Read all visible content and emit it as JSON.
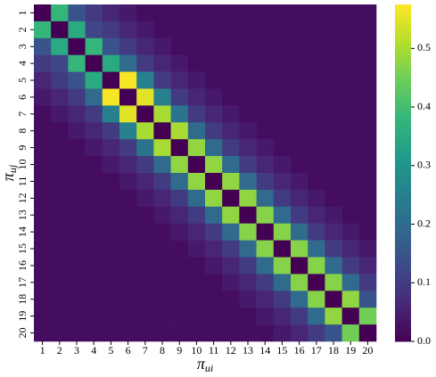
{
  "chart_data": {
    "type": "heatmap",
    "colormap": "viridis",
    "xlabel": {
      "symbol": "π",
      "subscript": "ui"
    },
    "ylabel": {
      "symbol": "π",
      "subscript": "uj"
    },
    "categories": [
      "1",
      "2",
      "3",
      "4",
      "5",
      "6",
      "7",
      "8",
      "9",
      "10",
      "11",
      "12",
      "13",
      "14",
      "15",
      "16",
      "17",
      "18",
      "19",
      "20"
    ],
    "y_categories": [
      "1",
      "2",
      "3",
      "4",
      "5",
      "6",
      "7",
      "8",
      "9",
      "10",
      "11",
      "12",
      "13",
      "14",
      "15",
      "16",
      "17",
      "18",
      "19",
      "20"
    ],
    "values": [
      [
        0,
        0.38,
        0.15,
        0.1,
        0.06,
        0.04,
        0.02,
        0.02,
        0.02,
        0.02,
        0.02,
        0.02,
        0.02,
        0.02,
        0.02,
        0.02,
        0.02,
        0.02,
        0.02,
        0.02
      ],
      [
        0.38,
        0,
        0.35,
        0.12,
        0.1,
        0.06,
        0.04,
        0.02,
        0.02,
        0.02,
        0.02,
        0.02,
        0.02,
        0.02,
        0.02,
        0.02,
        0.02,
        0.02,
        0.02,
        0.02
      ],
      [
        0.15,
        0.35,
        0,
        0.38,
        0.15,
        0.1,
        0.06,
        0.04,
        0.02,
        0.02,
        0.02,
        0.02,
        0.02,
        0.02,
        0.02,
        0.02,
        0.02,
        0.02,
        0.02,
        0.02
      ],
      [
        0.1,
        0.12,
        0.38,
        0,
        0.35,
        0.2,
        0.1,
        0.06,
        0.04,
        0.02,
        0.02,
        0.02,
        0.02,
        0.02,
        0.02,
        0.02,
        0.02,
        0.02,
        0.02,
        0.02
      ],
      [
        0.06,
        0.1,
        0.15,
        0.35,
        0,
        0.57,
        0.25,
        0.1,
        0.06,
        0.04,
        0.02,
        0.02,
        0.02,
        0.02,
        0.02,
        0.02,
        0.02,
        0.02,
        0.02,
        0.02
      ],
      [
        0.04,
        0.06,
        0.1,
        0.2,
        0.57,
        0,
        0.55,
        0.25,
        0.1,
        0.06,
        0.04,
        0.02,
        0.02,
        0.02,
        0.02,
        0.02,
        0.02,
        0.02,
        0.02,
        0.02
      ],
      [
        0.02,
        0.04,
        0.06,
        0.1,
        0.25,
        0.55,
        0,
        0.5,
        0.22,
        0.1,
        0.06,
        0.04,
        0.02,
        0.02,
        0.02,
        0.02,
        0.02,
        0.02,
        0.02,
        0.02
      ],
      [
        0.02,
        0.02,
        0.04,
        0.06,
        0.1,
        0.25,
        0.5,
        0,
        0.5,
        0.2,
        0.1,
        0.06,
        0.04,
        0.02,
        0.02,
        0.02,
        0.02,
        0.02,
        0.02,
        0.02
      ],
      [
        0.02,
        0.02,
        0.02,
        0.04,
        0.06,
        0.1,
        0.22,
        0.5,
        0,
        0.48,
        0.2,
        0.1,
        0.06,
        0.04,
        0.02,
        0.02,
        0.02,
        0.02,
        0.02,
        0.02
      ],
      [
        0.02,
        0.02,
        0.02,
        0.02,
        0.04,
        0.06,
        0.1,
        0.2,
        0.48,
        0,
        0.48,
        0.2,
        0.1,
        0.06,
        0.04,
        0.02,
        0.02,
        0.02,
        0.02,
        0.02
      ],
      [
        0.02,
        0.02,
        0.02,
        0.02,
        0.02,
        0.04,
        0.06,
        0.1,
        0.2,
        0.48,
        0,
        0.48,
        0.2,
        0.1,
        0.06,
        0.04,
        0.02,
        0.02,
        0.02,
        0.02
      ],
      [
        0.02,
        0.02,
        0.02,
        0.02,
        0.02,
        0.02,
        0.04,
        0.06,
        0.1,
        0.2,
        0.48,
        0,
        0.48,
        0.2,
        0.1,
        0.06,
        0.04,
        0.02,
        0.02,
        0.02
      ],
      [
        0.02,
        0.02,
        0.02,
        0.02,
        0.02,
        0.02,
        0.02,
        0.04,
        0.06,
        0.1,
        0.2,
        0.48,
        0,
        0.47,
        0.2,
        0.1,
        0.06,
        0.04,
        0.02,
        0.02
      ],
      [
        0.02,
        0.02,
        0.02,
        0.02,
        0.02,
        0.02,
        0.02,
        0.02,
        0.04,
        0.06,
        0.1,
        0.2,
        0.47,
        0,
        0.47,
        0.2,
        0.1,
        0.06,
        0.04,
        0.02
      ],
      [
        0.02,
        0.02,
        0.02,
        0.02,
        0.02,
        0.02,
        0.02,
        0.02,
        0.02,
        0.04,
        0.06,
        0.1,
        0.2,
        0.47,
        0,
        0.47,
        0.2,
        0.1,
        0.06,
        0.04
      ],
      [
        0.02,
        0.02,
        0.02,
        0.02,
        0.02,
        0.02,
        0.02,
        0.02,
        0.02,
        0.02,
        0.04,
        0.06,
        0.1,
        0.2,
        0.47,
        0,
        0.47,
        0.2,
        0.1,
        0.06
      ],
      [
        0.02,
        0.02,
        0.02,
        0.02,
        0.02,
        0.02,
        0.02,
        0.02,
        0.02,
        0.02,
        0.02,
        0.04,
        0.06,
        0.1,
        0.2,
        0.47,
        0,
        0.47,
        0.2,
        0.1
      ],
      [
        0.02,
        0.02,
        0.02,
        0.02,
        0.02,
        0.02,
        0.02,
        0.02,
        0.02,
        0.02,
        0.02,
        0.02,
        0.04,
        0.06,
        0.1,
        0.2,
        0.47,
        0,
        0.48,
        0.15
      ],
      [
        0.02,
        0.02,
        0.02,
        0.02,
        0.02,
        0.02,
        0.02,
        0.02,
        0.02,
        0.02,
        0.02,
        0.02,
        0.02,
        0.04,
        0.06,
        0.1,
        0.2,
        0.48,
        0,
        0.45
      ],
      [
        0.02,
        0.02,
        0.02,
        0.02,
        0.02,
        0.02,
        0.02,
        0.02,
        0.02,
        0.02,
        0.02,
        0.02,
        0.02,
        0.02,
        0.04,
        0.06,
        0.1,
        0.15,
        0.45,
        0
      ]
    ],
    "clim": [
      0,
      0.575
    ],
    "cticks": [
      {
        "value": 0,
        "label": "0.0"
      },
      0.1,
      0.2,
      0.3,
      0.4,
      0.5
    ]
  }
}
